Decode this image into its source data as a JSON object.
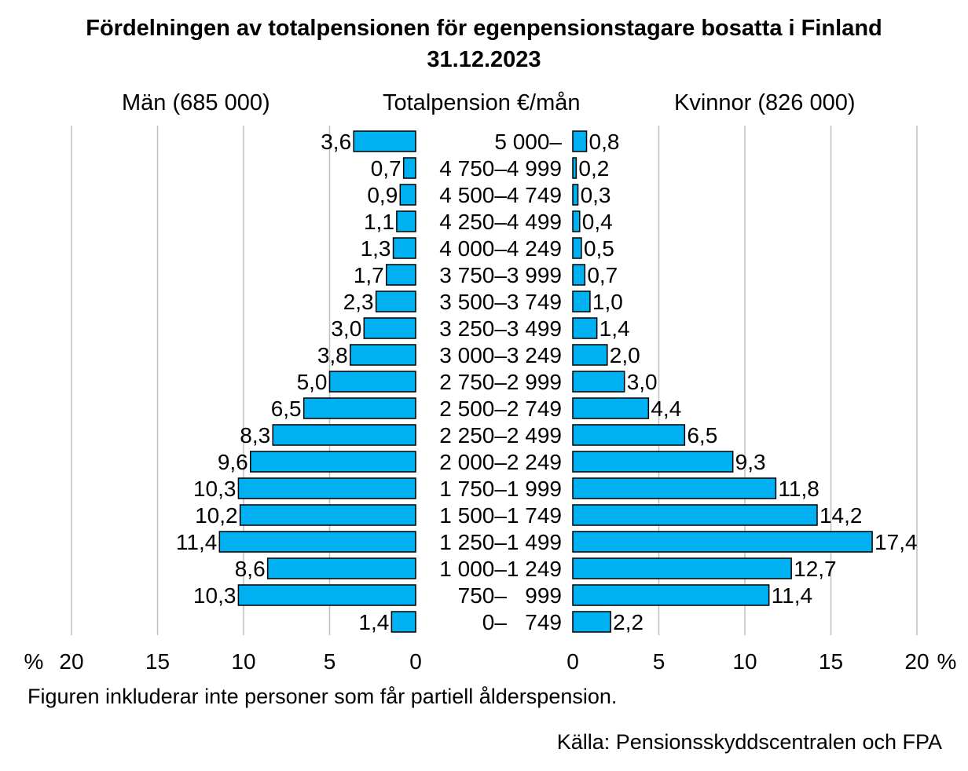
{
  "title": {
    "line1": "Fördelningen av totalpensionen för egenpensionstagare bosatta i Finland",
    "line2": "31.12.2023"
  },
  "headers": {
    "men": "Män (685 000)",
    "center": "Totalpension €/mån",
    "women": "Kvinnor (826 000)"
  },
  "footnote": "Figuren inkluderar inte personer som får partiell ålderspension.",
  "source": "Källa: Pensionsskyddscentralen och FPA",
  "colors": {
    "bar": "#00b0f0",
    "bar_stroke": "#000000",
    "grid": "#bfbfbf"
  },
  "chart_data": {
    "type": "bar",
    "orientation": "horizontal",
    "layout": "population-pyramid",
    "unit_label": "%",
    "xlim": [
      0,
      20
    ],
    "ticks": [
      0,
      5,
      10,
      15,
      20
    ],
    "categories": [
      "5 000–",
      "4 750–4 999",
      "4 500–4 749",
      "4 250–4 499",
      "4 000–4 249",
      "3 750–3 999",
      "3 500–3 749",
      "3 250–3 499",
      "3 000–3 249",
      "2 750–2 999",
      "2 500–2 749",
      "2 250–2 499",
      "2 000–2 249",
      "1 750–1 999",
      "1 500–1 749",
      "1 250–1 499",
      "1 000–1 249",
      "750–   999",
      "0–   749"
    ],
    "series": [
      {
        "name": "Män (685 000)",
        "side": "left",
        "values": [
          3.6,
          0.7,
          0.9,
          1.1,
          1.3,
          1.7,
          2.3,
          3.0,
          3.8,
          5.0,
          6.5,
          8.3,
          9.6,
          10.3,
          10.2,
          11.4,
          8.6,
          10.3,
          1.4
        ],
        "labels": [
          "3,6",
          "0,7",
          "0,9",
          "1,1",
          "1,3",
          "1,7",
          "2,3",
          "3,0",
          "3,8",
          "5,0",
          "6,5",
          "8,3",
          "9,6",
          "10,3",
          "10,2",
          "11,4",
          "8,6",
          "10,3",
          "1,4"
        ]
      },
      {
        "name": "Kvinnor (826 000)",
        "side": "right",
        "values": [
          0.8,
          0.2,
          0.3,
          0.4,
          0.5,
          0.7,
          1.0,
          1.4,
          2.0,
          3.0,
          4.4,
          6.5,
          9.3,
          11.8,
          14.2,
          17.4,
          12.7,
          11.4,
          2.2
        ],
        "labels": [
          "0,8",
          "0,2",
          "0,3",
          "0,4",
          "0,5",
          "0,7",
          "1,0",
          "1,4",
          "2,0",
          "3,0",
          "4,4",
          "6,5",
          "9,3",
          "11,8",
          "14,2",
          "17,4",
          "12,7",
          "11,4",
          "2,2"
        ]
      }
    ]
  }
}
